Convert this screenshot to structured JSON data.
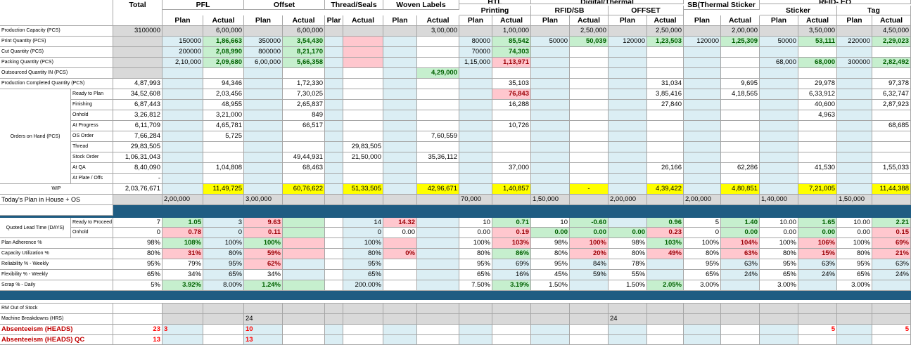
{
  "header": {
    "total": "Total",
    "groups": [
      "PFL",
      "Offset",
      "Thread/Seals",
      "Woven Labels",
      "HTL",
      "Digital/Thermal",
      "SB(Thermal Sticker",
      "RFID- EQ"
    ],
    "subgroups": [
      "Printing",
      "RFID/SB",
      "OFFSET",
      "Sticker",
      "Tag"
    ],
    "plan": "Plan",
    "actual": "Actual",
    "plan_cut": "Plar"
  },
  "labels": {
    "production_capacity": "Production Capacity (PCS)",
    "print_quantity": "Print Quantity (PCS)",
    "cut_quantity": "Cut Quantity (PCS)",
    "packing_quantity": "Packing Quantity (PCS)",
    "outsourced_quantity": "Outsourced Quantity IN (PCS)",
    "production_completed": "Production Completed Quantity (PCS)",
    "orders_on_hand": "Orders on Hand (PCS)",
    "ready_to_plan": "Ready to Plan",
    "finishing": "Finishing",
    "onhold": "Onhold",
    "at_progress": "At Progress",
    "os_order": "OS Order",
    "thread": "Thread",
    "stock_order": "Stock Order",
    "at_qa": "At QA",
    "at_plate": "At Plate / Offs",
    "wip": "WIP",
    "todays_plan": "Today's Plan in House + OS",
    "quoted_lead_time": "Quoted Lead Time (DAYS)",
    "ready_to_proceed": "Ready to Proceed",
    "onhold_lt": "Onhold",
    "plan_adherence": "Plan Adherence %",
    "capacity_utilization": "Capacity Utilization %",
    "reliability": "Reliability % - Weekly",
    "flexibility": "Flexibility % - Weekly",
    "scrap": "Scrap % - Daily",
    "rm_out_of_stock": "RM Out of Stock",
    "machine_breakdowns": "Machine Breakdowns (HRS)",
    "absenteeism": "Absenteeism (HEADS)",
    "absenteeism_qc": "Absenteeism (HEADS) QC"
  },
  "values": {
    "capacity": [
      "3100000",
      "6,00,000",
      "6,00,000",
      "3,00,000",
      "1,00,000",
      "2,50,000",
      "2,50,000",
      "2,00,000",
      "3,50,000",
      "4,50,000"
    ],
    "print": [
      "150000",
      "1,86,663",
      "350000",
      "3,54,430",
      "80000",
      "85,542",
      "50000",
      "50,039",
      "120000",
      "1,23,503",
      "120000",
      "1,25,309",
      "50000",
      "53,111",
      "220000",
      "2,29,023"
    ],
    "cut": [
      "200000",
      "2,08,990",
      "800000",
      "8,21,170",
      "70000",
      "74,303"
    ],
    "packing": [
      "2,10,000",
      "2,09,680",
      "6,00,000",
      "5,66,358",
      "1,15,000",
      "1,13,971",
      "68,000",
      "68,000",
      "300000",
      "2,82,492"
    ],
    "outsourced": [
      "4,29,000"
    ],
    "completed": [
      "4,87,993",
      "94,346",
      "1,72,330",
      "35,103",
      "31,034",
      "9,695",
      "29,978",
      "97,378"
    ],
    "ready_to_plan": [
      "34,52,608",
      "2,03,456",
      "7,30,025",
      "76,843",
      "3,85,416",
      "4,18,565",
      "6,33,912",
      "6,32,747"
    ],
    "finishing": [
      "6,87,443",
      "48,955",
      "2,65,837",
      "16,288",
      "27,840",
      "40,600",
      "2,87,923"
    ],
    "onhold": [
      "3,26,812",
      "3,21,000",
      "849",
      "4,963"
    ],
    "at_progress": [
      "6,11,709",
      "4,65,781",
      "66,517",
      "10,726",
      "68,685"
    ],
    "os_order": [
      "7,66,284",
      "5,725",
      "7,60,559"
    ],
    "thread": [
      "29,83,505",
      "29,83,505"
    ],
    "stock_order": [
      "1,06,31,043",
      "49,44,931",
      "21,50,000",
      "35,36,112"
    ],
    "at_qa": [
      "8,40,090",
      "1,04,808",
      "68,463",
      "37,000",
      "26,166",
      "62,286",
      "41,530",
      "1,55,033"
    ],
    "at_plate": [
      "-"
    ],
    "wip": [
      "2,03,76,671",
      "11,49,725",
      "60,76,622",
      "51,33,505",
      "42,96,671",
      "1,40,857",
      "-",
      "4,39,422",
      "4,80,851",
      "7,21,005",
      "11,44,388"
    ],
    "todays_plan": [
      "2,00,000",
      "3,00,000",
      "70,000",
      "1,50,000",
      "2,00,000",
      "2,00,000",
      "1,40,000",
      "1,50,000"
    ],
    "ready_to_proceed": [
      "7",
      "1.05",
      "3",
      "9.63",
      "14",
      "14.32",
      "10",
      "0.71",
      "10",
      "-0.60",
      "0.96",
      "5",
      "1.40",
      "10.00",
      "1.65",
      "10.00",
      "2.21"
    ],
    "onhold_lt": [
      "0",
      "0.78",
      "0",
      "0.11",
      "0",
      "0.00",
      "0.00",
      "0.19",
      "0.00",
      "0.00",
      "0.00",
      "0.23",
      "0",
      "0.00",
      "0.00",
      "0.00",
      "0.00",
      "0.15"
    ],
    "plan_adherence": [
      "98%",
      "108%",
      "100%",
      "100%",
      "100%",
      "100%",
      "103%",
      "98%",
      "100%",
      "98%",
      "103%",
      "100%",
      "104%",
      "100%",
      "106%",
      "100%",
      "69%"
    ],
    "capacity_utilization": [
      "80%",
      "31%",
      "80%",
      "59%",
      "80%",
      "0%",
      "80%",
      "86%",
      "80%",
      "20%",
      "80%",
      "49%",
      "80%",
      "63%",
      "80%",
      "15%",
      "80%",
      "21%"
    ],
    "reliability": [
      "95%",
      "79%",
      "95%",
      "62%",
      "95%",
      "95%",
      "69%",
      "95%",
      "84%",
      "78%",
      "95%",
      "63%",
      "95%",
      "63%",
      "95%",
      "63%"
    ],
    "flexibility": [
      "65%",
      "34%",
      "65%",
      "34%",
      "65%",
      "65%",
      "16%",
      "45%",
      "59%",
      "55%",
      "65%",
      "24%",
      "65%",
      "24%",
      "65%",
      "24%"
    ],
    "scrap": [
      "5%",
      "3.92%",
      "8.00%",
      "1.24%",
      "200.00%",
      "7.50%",
      "3.19%",
      "1.50%",
      "1.50%",
      "2.05%",
      "3.00%",
      "3.00%",
      "3.00%"
    ],
    "machine_breakdowns": [
      "24",
      "24"
    ],
    "absenteeism": [
      "23",
      "3",
      "10",
      "5",
      "5"
    ],
    "absenteeism_qc": [
      "13",
      "13"
    ]
  }
}
